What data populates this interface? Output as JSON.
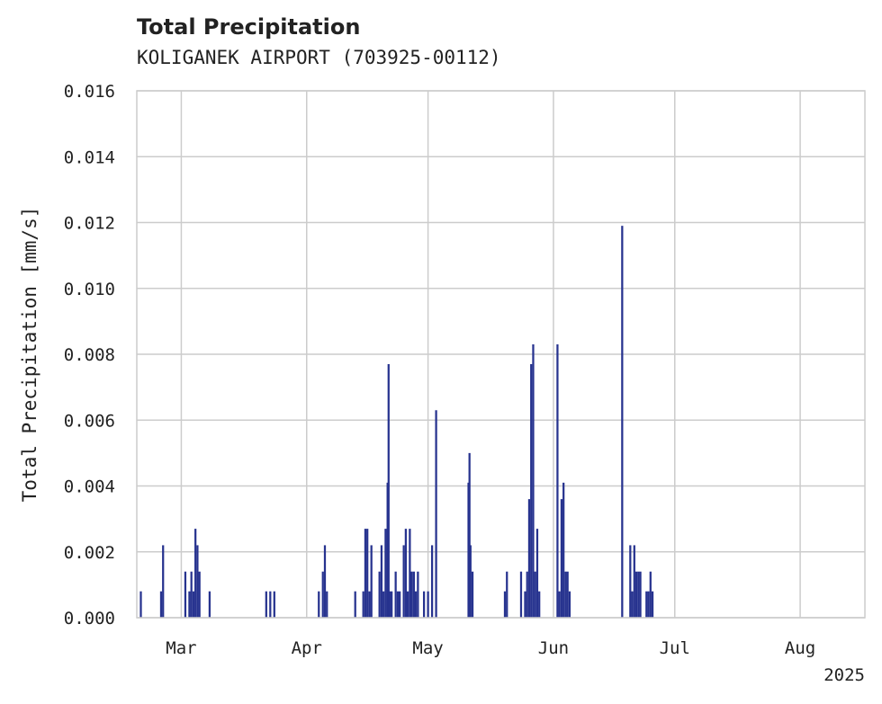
{
  "chart_data": {
    "type": "bar",
    "title": "Total Precipitation",
    "subtitle": "KOLIGANEK AIRPORT (703925-00112)",
    "ylabel": "Total Precipitation [mm/s]",
    "xlabel": "",
    "year_label": "2025",
    "ylim": [
      0,
      0.016
    ],
    "xlim": [
      "2025-02-18",
      "2025-08-17"
    ],
    "yticks": [
      "0.000",
      "0.002",
      "0.004",
      "0.006",
      "0.008",
      "0.010",
      "0.012",
      "0.014",
      "0.016"
    ],
    "xticks": [
      {
        "label": "Mar",
        "date": "2025-03-01"
      },
      {
        "label": "Apr",
        "date": "2025-04-01"
      },
      {
        "label": "May",
        "date": "2025-05-01"
      },
      {
        "label": "Jun",
        "date": "2025-06-01"
      },
      {
        "label": "Jul",
        "date": "2025-07-01"
      },
      {
        "label": "Aug",
        "date": "2025-08-01"
      }
    ],
    "grid": true,
    "bar_color": "#27338f",
    "series": [
      {
        "points": [
          {
            "x": "2025-02-19",
            "y": 0.0008
          },
          {
            "x": "2025-02-24",
            "y": 0.0008
          },
          {
            "x": "2025-02-24 12:00",
            "y": 0.0022
          },
          {
            "x": "2025-03-02",
            "y": 0.0014
          },
          {
            "x": "2025-03-03",
            "y": 0.0008
          },
          {
            "x": "2025-03-03 12:00",
            "y": 0.0014
          },
          {
            "x": "2025-03-04",
            "y": 0.0008
          },
          {
            "x": "2025-03-04 12:00",
            "y": 0.0027
          },
          {
            "x": "2025-03-05",
            "y": 0.0022
          },
          {
            "x": "2025-03-05 12:00",
            "y": 0.0014
          },
          {
            "x": "2025-03-08",
            "y": 0.0008
          },
          {
            "x": "2025-03-22",
            "y": 0.0008
          },
          {
            "x": "2025-03-23",
            "y": 0.0008
          },
          {
            "x": "2025-03-24",
            "y": 0.0008
          },
          {
            "x": "2025-04-04",
            "y": 0.0008
          },
          {
            "x": "2025-04-05",
            "y": 0.0014
          },
          {
            "x": "2025-04-05 12:00",
            "y": 0.0022
          },
          {
            "x": "2025-04-06",
            "y": 0.0008
          },
          {
            "x": "2025-04-13",
            "y": 0.0008
          },
          {
            "x": "2025-04-15",
            "y": 0.0008
          },
          {
            "x": "2025-04-15 12:00",
            "y": 0.0027
          },
          {
            "x": "2025-04-16",
            "y": 0.0027
          },
          {
            "x": "2025-04-16 12:00",
            "y": 0.0008
          },
          {
            "x": "2025-04-17",
            "y": 0.0022
          },
          {
            "x": "2025-04-19",
            "y": 0.0014
          },
          {
            "x": "2025-04-19 12:00",
            "y": 0.0022
          },
          {
            "x": "2025-04-20",
            "y": 0.0008
          },
          {
            "x": "2025-04-20 12:00",
            "y": 0.0027
          },
          {
            "x": "2025-04-21",
            "y": 0.0041
          },
          {
            "x": "2025-04-21 06:00",
            "y": 0.0077
          },
          {
            "x": "2025-04-21 12:00",
            "y": 0.0008
          },
          {
            "x": "2025-04-22",
            "y": 0.0008
          },
          {
            "x": "2025-04-23",
            "y": 0.0014
          },
          {
            "x": "2025-04-23 12:00",
            "y": 0.0008
          },
          {
            "x": "2025-04-24",
            "y": 0.0008
          },
          {
            "x": "2025-04-25",
            "y": 0.0022
          },
          {
            "x": "2025-04-25 12:00",
            "y": 0.0027
          },
          {
            "x": "2025-04-26",
            "y": 0.0008
          },
          {
            "x": "2025-04-26 12:00",
            "y": 0.0027
          },
          {
            "x": "2025-04-27",
            "y": 0.0014
          },
          {
            "x": "2025-04-27 12:00",
            "y": 0.0014
          },
          {
            "x": "2025-04-28",
            "y": 0.0008
          },
          {
            "x": "2025-04-28 12:00",
            "y": 0.0014
          },
          {
            "x": "2025-04-30",
            "y": 0.0008
          },
          {
            "x": "2025-05-01",
            "y": 0.0008
          },
          {
            "x": "2025-05-02",
            "y": 0.0022
          },
          {
            "x": "2025-05-03",
            "y": 0.0063
          },
          {
            "x": "2025-05-11",
            "y": 0.0041
          },
          {
            "x": "2025-05-11 06:00",
            "y": 0.005
          },
          {
            "x": "2025-05-11 12:00",
            "y": 0.0022
          },
          {
            "x": "2025-05-12",
            "y": 0.0014
          },
          {
            "x": "2025-05-20",
            "y": 0.0008
          },
          {
            "x": "2025-05-20 12:00",
            "y": 0.0014
          },
          {
            "x": "2025-05-24",
            "y": 0.0014
          },
          {
            "x": "2025-05-25",
            "y": 0.0008
          },
          {
            "x": "2025-05-25 12:00",
            "y": 0.0014
          },
          {
            "x": "2025-05-26",
            "y": 0.0036
          },
          {
            "x": "2025-05-26 12:00",
            "y": 0.0077
          },
          {
            "x": "2025-05-27",
            "y": 0.0083
          },
          {
            "x": "2025-05-27 12:00",
            "y": 0.0014
          },
          {
            "x": "2025-05-28",
            "y": 0.0027
          },
          {
            "x": "2025-05-28 12:00",
            "y": 0.0008
          },
          {
            "x": "2025-06-02",
            "y": 0.0083
          },
          {
            "x": "2025-06-02 12:00",
            "y": 0.0008
          },
          {
            "x": "2025-06-03",
            "y": 0.0036
          },
          {
            "x": "2025-06-03 12:00",
            "y": 0.0041
          },
          {
            "x": "2025-06-04",
            "y": 0.0014
          },
          {
            "x": "2025-06-04 12:00",
            "y": 0.0014
          },
          {
            "x": "2025-06-05",
            "y": 0.0008
          },
          {
            "x": "2025-06-18",
            "y": 0.0119
          },
          {
            "x": "2025-06-20",
            "y": 0.0022
          },
          {
            "x": "2025-06-20 12:00",
            "y": 0.0008
          },
          {
            "x": "2025-06-21",
            "y": 0.0022
          },
          {
            "x": "2025-06-21 12:00",
            "y": 0.0014
          },
          {
            "x": "2025-06-22",
            "y": 0.0014
          },
          {
            "x": "2025-06-22 12:00",
            "y": 0.0014
          },
          {
            "x": "2025-06-24",
            "y": 0.0008
          },
          {
            "x": "2025-06-24 12:00",
            "y": 0.0008
          },
          {
            "x": "2025-06-25",
            "y": 0.0014
          },
          {
            "x": "2025-06-25 12:00",
            "y": 0.0008
          }
        ]
      }
    ]
  }
}
